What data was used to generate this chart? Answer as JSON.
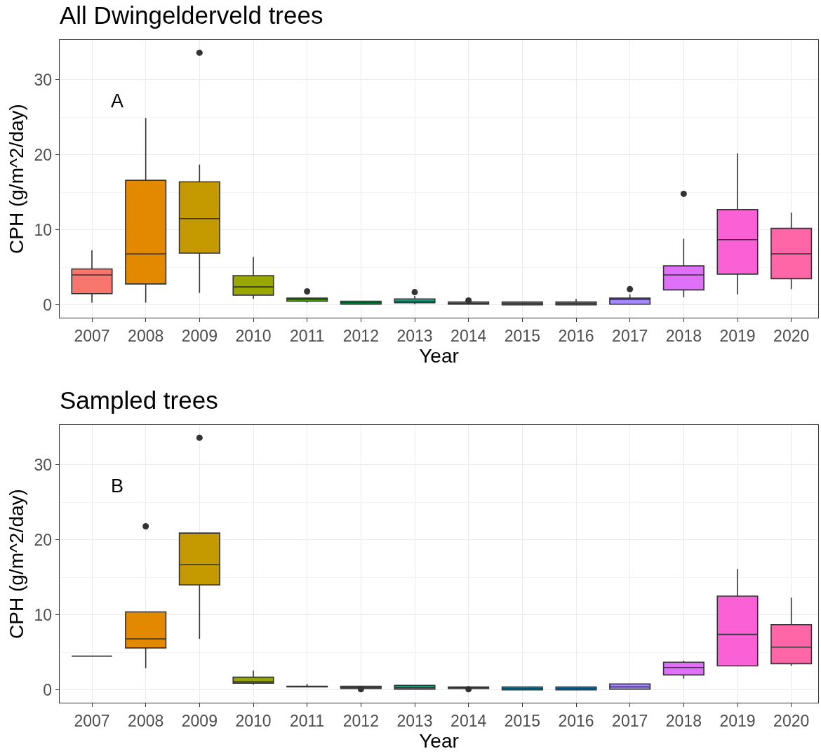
{
  "chart_data": [
    {
      "type": "box",
      "title": "All Dwingelderveld trees",
      "xlabel": "Year",
      "ylabel": "CPH (g/m^2/day)",
      "annotations": [
        "A"
      ],
      "categories": [
        "2007",
        "2008",
        "2009",
        "2010",
        "2011",
        "2012",
        "2013",
        "2014",
        "2015",
        "2016",
        "2017",
        "2018",
        "2019",
        "2020"
      ],
      "colors": [
        "#F8766D",
        "#E38900",
        "#C49A00",
        "#99A800",
        "#53B400",
        "#00BC56",
        "#00C094",
        "#00BFC4",
        "#00B6EB",
        "#06A4FF",
        "#A58AFF",
        "#DF70F8",
        "#FB61D7",
        "#FF66A8"
      ],
      "boxes": [
        {
          "low": 0.3,
          "q1": 1.5,
          "median": 4.0,
          "q3": 4.8,
          "high": 7.3
        },
        {
          "low": 0.3,
          "q1": 2.8,
          "median": 6.8,
          "q3": 16.6,
          "high": 24.9
        },
        {
          "low": 1.6,
          "q1": 6.9,
          "median": 11.5,
          "q3": 16.4,
          "high": 18.7,
          "outliers": [
            33.6
          ]
        },
        {
          "low": 0.8,
          "q1": 1.3,
          "median": 2.4,
          "q3": 3.9,
          "high": 6.4
        },
        {
          "low": 0.3,
          "q1": 0.5,
          "median": 0.7,
          "q3": 0.9,
          "high": 0.9,
          "outliers": [
            1.8
          ]
        },
        {
          "low": 0.1,
          "q1": 0.1,
          "median": 0.3,
          "q3": 0.5,
          "high": 0.5
        },
        {
          "low": 0.1,
          "q1": 0.3,
          "median": 0.5,
          "q3": 0.8,
          "high": 1.2,
          "outliers": [
            1.7
          ]
        },
        {
          "low": 0.1,
          "q1": 0.1,
          "median": 0.2,
          "q3": 0.4,
          "high": 0.4,
          "outliers": [
            0.6
          ]
        },
        {
          "low": 0.0,
          "q1": 0.0,
          "median": 0.2,
          "q3": 0.4,
          "high": 0.4
        },
        {
          "low": 0.0,
          "q1": 0.0,
          "median": 0.2,
          "q3": 0.4,
          "high": 0.8
        },
        {
          "low": 0.1,
          "q1": 0.1,
          "median": 0.7,
          "q3": 0.9,
          "high": 1.4,
          "outliers": [
            2.1
          ]
        },
        {
          "low": 1.0,
          "q1": 2.0,
          "median": 4.0,
          "q3": 5.2,
          "high": 8.8,
          "outliers": [
            14.8
          ]
        },
        {
          "low": 1.4,
          "q1": 4.1,
          "median": 8.7,
          "q3": 12.7,
          "high": 20.2
        },
        {
          "low": 2.1,
          "q1": 3.5,
          "median": 6.8,
          "q3": 10.2,
          "high": 12.3
        }
      ],
      "ylim": [
        -1.7,
        35.3
      ],
      "yticks": [
        0,
        10,
        20,
        30
      ],
      "grid": true
    },
    {
      "type": "box",
      "title": "Sampled trees",
      "xlabel": "Year",
      "ylabel": "CPH (g/m^2/day)",
      "annotations": [
        "B"
      ],
      "categories": [
        "2007",
        "2008",
        "2009",
        "2010",
        "2011",
        "2012",
        "2013",
        "2014",
        "2015",
        "2016",
        "2017",
        "2018",
        "2019",
        "2020"
      ],
      "colors": [
        "#333333",
        "#E38900",
        "#C49A00",
        "#99A800",
        "#53B400",
        "#00BC56",
        "#00C094",
        "#00BFC4",
        "#00B6EB",
        "#06A4FF",
        "#A58AFF",
        "#DF70F8",
        "#FB61D7",
        "#FF66A8"
      ],
      "boxes": [
        {
          "low": 4.5,
          "q1": 4.5,
          "median": 4.5,
          "q3": 4.5,
          "high": 4.5
        },
        {
          "low": 2.9,
          "q1": 5.6,
          "median": 6.8,
          "q3": 10.4,
          "high": 10.4,
          "outliers": [
            21.8
          ]
        },
        {
          "low": 6.8,
          "q1": 14.0,
          "median": 16.7,
          "q3": 20.9,
          "high": 20.9,
          "outliers": [
            33.6
          ]
        },
        {
          "low": 0.7,
          "q1": 0.9,
          "median": 1.1,
          "q3": 1.7,
          "high": 2.6
        },
        {
          "low": 0.4,
          "q1": 0.4,
          "median": 0.4,
          "q3": 0.5,
          "high": 0.8
        },
        {
          "low": 0.2,
          "q1": 0.2,
          "median": 0.3,
          "q3": 0.5,
          "high": 0.5,
          "outliers": [
            0.1
          ]
        },
        {
          "low": 0.1,
          "q1": 0.1,
          "median": 0.3,
          "q3": 0.6,
          "high": 0.6
        },
        {
          "low": 0.2,
          "q1": 0.2,
          "median": 0.3,
          "q3": 0.4,
          "high": 0.4,
          "outliers": [
            0.1
          ]
        },
        {
          "low": 0.0,
          "q1": 0.0,
          "median": 0.2,
          "q3": 0.4,
          "high": 0.4
        },
        {
          "low": 0.0,
          "q1": 0.0,
          "median": 0.2,
          "q3": 0.4,
          "high": 0.4
        },
        {
          "low": 0.1,
          "q1": 0.1,
          "median": 0.4,
          "q3": 0.8,
          "high": 0.8
        },
        {
          "low": 1.5,
          "q1": 2.0,
          "median": 3.0,
          "q3": 3.7,
          "high": 3.9
        },
        {
          "low": 3.2,
          "q1": 3.2,
          "median": 7.4,
          "q3": 12.5,
          "high": 16.1
        },
        {
          "low": 3.2,
          "q1": 3.5,
          "median": 5.7,
          "q3": 8.7,
          "high": 12.3
        }
      ],
      "ylim": [
        -1.7,
        35.3
      ],
      "yticks": [
        0,
        10,
        20,
        30
      ],
      "grid": true
    }
  ]
}
